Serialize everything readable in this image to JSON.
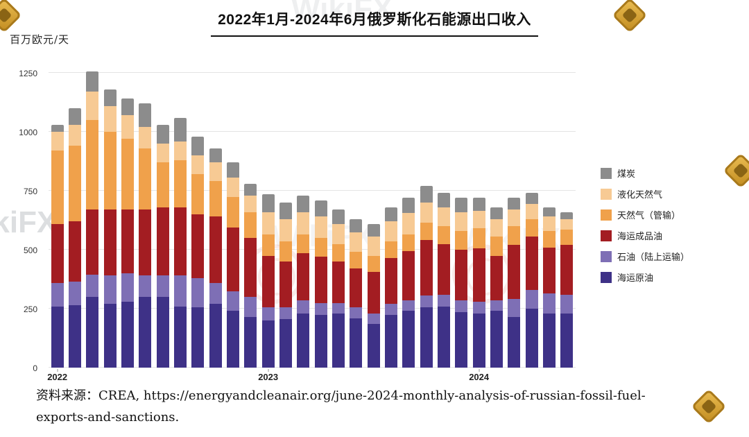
{
  "title": "2022年1月-2024年6月俄罗斯化石能源出口收入",
  "y_unit_label": "百万欧元/天",
  "source": {
    "line1": "资料来源：CREA, https://energyandcleanair.org/june-2024-monthly-analysis-of-russian-fossil-fuel-",
    "line2": "exports-and-sanctions."
  },
  "watermark": {
    "brand_text": "WikiFX"
  },
  "chart_data": {
    "type": "bar",
    "stacked": true,
    "title": "2022年1月-2024年6月俄罗斯化石能源出口收入",
    "ylabel": "百万欧元/天",
    "ylim": [
      0,
      1300
    ],
    "yticks": [
      0,
      250,
      500,
      750,
      1000,
      1250
    ],
    "grid": "horizontal",
    "legend_position": "right",
    "x_ticks": [
      {
        "index": 0,
        "label": "2022"
      },
      {
        "index": 12,
        "label": "2023"
      },
      {
        "index": 24,
        "label": "2024"
      }
    ],
    "categories": [
      "2022-01",
      "2022-02",
      "2022-03",
      "2022-04",
      "2022-05",
      "2022-06",
      "2022-07",
      "2022-08",
      "2022-09",
      "2022-10",
      "2022-11",
      "2022-12",
      "2023-01",
      "2023-02",
      "2023-03",
      "2023-04",
      "2023-05",
      "2023-06",
      "2023-07",
      "2023-08",
      "2023-09",
      "2023-10",
      "2023-11",
      "2023-12",
      "2024-01",
      "2024-02",
      "2024-03",
      "2024-04",
      "2024-05",
      "2024-06"
    ],
    "series": [
      {
        "name": "海运原油",
        "color": "#3e3187",
        "values": [
          260,
          265,
          300,
          270,
          280,
          300,
          300,
          260,
          255,
          270,
          240,
          215,
          200,
          205,
          230,
          225,
          230,
          210,
          185,
          225,
          240,
          255,
          260,
          235,
          230,
          240,
          215,
          250,
          230,
          230
        ]
      },
      {
        "name": "石油（陆上运输）",
        "color": "#7e6fb5",
        "values": [
          100,
          100,
          95,
          120,
          120,
          90,
          90,
          130,
          125,
          90,
          85,
          85,
          55,
          50,
          55,
          50,
          45,
          45,
          45,
          45,
          45,
          50,
          50,
          50,
          50,
          45,
          75,
          80,
          85,
          80
        ]
      },
      {
        "name": "海运成品油",
        "color": "#a31d22",
        "values": [
          250,
          255,
          275,
          280,
          270,
          280,
          290,
          290,
          270,
          280,
          270,
          250,
          220,
          195,
          200,
          195,
          175,
          165,
          175,
          195,
          210,
          235,
          215,
          215,
          225,
          190,
          230,
          225,
          195,
          210
        ]
      },
      {
        "name": "天然气（管输）",
        "color": "#f0a14b",
        "values": [
          310,
          320,
          380,
          330,
          300,
          260,
          190,
          200,
          170,
          150,
          130,
          110,
          90,
          85,
          80,
          80,
          75,
          70,
          70,
          70,
          70,
          75,
          75,
          80,
          85,
          80,
          80,
          75,
          70,
          65
        ]
      },
      {
        "name": "液化天然气",
        "color": "#f7ca94",
        "values": [
          80,
          90,
          120,
          110,
          100,
          90,
          80,
          80,
          80,
          80,
          80,
          70,
          95,
          95,
          95,
          90,
          85,
          85,
          80,
          85,
          90,
          85,
          80,
          80,
          75,
          75,
          70,
          65,
          60,
          45
        ]
      },
      {
        "name": "煤炭",
        "color": "#8c8c8c",
        "values": [
          30,
          70,
          85,
          70,
          70,
          100,
          80,
          100,
          80,
          60,
          65,
          50,
          75,
          70,
          70,
          70,
          60,
          55,
          55,
          60,
          65,
          70,
          60,
          60,
          55,
          50,
          50,
          45,
          40,
          30
        ]
      }
    ]
  }
}
